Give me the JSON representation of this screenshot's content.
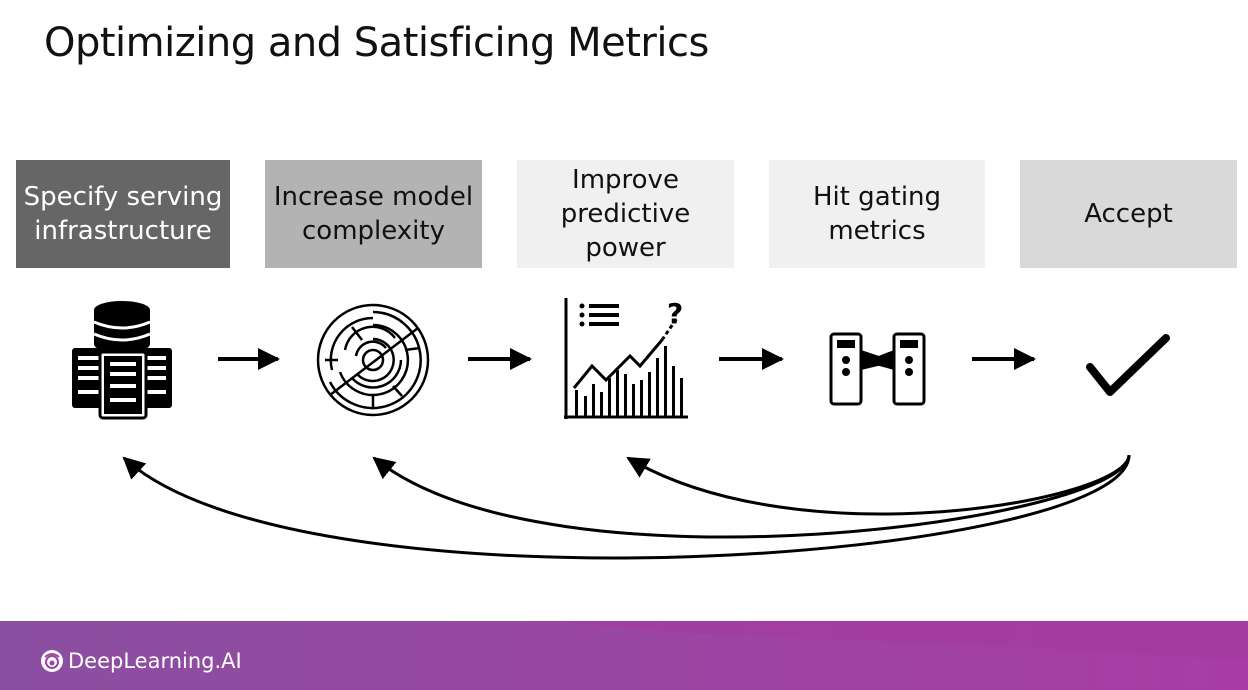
{
  "title": "Optimizing and Satisficing Metrics",
  "steps": [
    {
      "label": "Specify serving infrastructure",
      "icon": "server-stack-icon"
    },
    {
      "label": "Increase model complexity",
      "icon": "maze-icon"
    },
    {
      "label": "Improve predictive power",
      "icon": "growth-chart-icon"
    },
    {
      "label": "Hit gating metrics",
      "icon": "turnstile-gate-icon"
    },
    {
      "label": "Accept",
      "icon": "checkmark-icon"
    }
  ],
  "chart_question_mark": "?",
  "brand": {
    "name": "DeepLearning.AI",
    "logo": "deeplearning-logo-icon"
  },
  "colors": {
    "footer_start": "#8a4fa0",
    "footer_end": "#a83ca6",
    "step1": "#666666",
    "step2": "#b3b3b3",
    "step3": "#f0f0f0",
    "step4": "#f0f0f0",
    "step5": "#d9d9d9"
  }
}
